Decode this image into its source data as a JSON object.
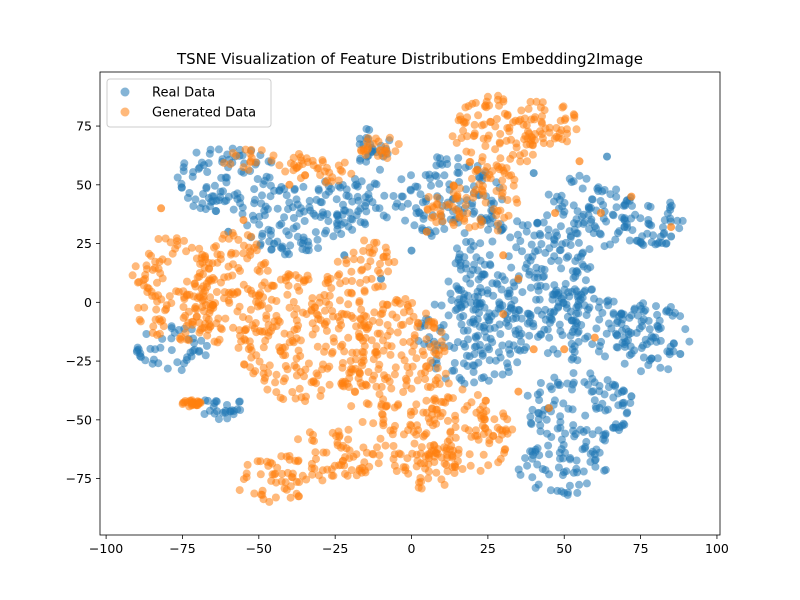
{
  "chart_data": {
    "type": "scatter",
    "title": "TSNE Visualization of Feature Distributions Embedding2Image",
    "xlabel": "",
    "ylabel": "",
    "xlim": [
      -102,
      101
    ],
    "ylim": [
      -99,
      98
    ],
    "xticks": [
      -100,
      -75,
      -50,
      -25,
      0,
      25,
      50,
      75,
      100
    ],
    "xtick_labels": [
      "−100",
      "−75",
      "−50",
      "−25",
      "0",
      "25",
      "50",
      "75",
      "100"
    ],
    "yticks": [
      -75,
      -50,
      -25,
      0,
      25,
      50,
      75
    ],
    "ytick_labels": [
      "−75",
      "−50",
      "−25",
      "0",
      "25",
      "50",
      "75"
    ],
    "grid": false,
    "legend_position": "upper-left",
    "series": [
      {
        "name": "Real Data",
        "color": "#1f77b4",
        "alpha": 0.55,
        "clusters": [
          {
            "cx": -60,
            "cy": 52,
            "rx": 17,
            "ry": 15
          },
          {
            "cx": -38,
            "cy": 35,
            "rx": 17,
            "ry": 15
          },
          {
            "cx": -20,
            "cy": 42,
            "rx": 14,
            "ry": 12
          },
          {
            "cx": -12,
            "cy": 65,
            "rx": 6,
            "ry": 10
          },
          {
            "cx": 12,
            "cy": 45,
            "rx": 18,
            "ry": 18
          },
          {
            "cx": 35,
            "cy": 10,
            "rx": 25,
            "ry": 25
          },
          {
            "cx": 57,
            "cy": 38,
            "rx": 15,
            "ry": 16
          },
          {
            "cx": 78,
            "cy": 35,
            "rx": 12,
            "ry": 12
          },
          {
            "cx": 78,
            "cy": -15,
            "rx": 14,
            "ry": 15
          },
          {
            "cx": 55,
            "cy": -10,
            "rx": 18,
            "ry": 15
          },
          {
            "cx": 55,
            "cy": -45,
            "rx": 18,
            "ry": 16
          },
          {
            "cx": 50,
            "cy": -70,
            "rx": 15,
            "ry": 12
          },
          {
            "cx": 20,
            "cy": -15,
            "rx": 18,
            "ry": 20
          },
          {
            "cx": -78,
            "cy": -20,
            "rx": 12,
            "ry": 10
          },
          {
            "cx": -62,
            "cy": -45,
            "rx": 8,
            "ry": 6
          }
        ],
        "sparse": [
          {
            "x": -60,
            "y": 30
          },
          {
            "x": -45,
            "y": 25
          },
          {
            "x": -22,
            "y": 20
          },
          {
            "x": -10,
            "y": 10
          },
          {
            "x": 0,
            "y": 22
          },
          {
            "x": 72,
            "y": -40
          },
          {
            "x": 88,
            "y": -22
          },
          {
            "x": 85,
            "y": 28
          },
          {
            "x": 64,
            "y": 62
          },
          {
            "x": 40,
            "y": 55
          }
        ]
      },
      {
        "name": "Generated Data",
        "color": "#ff7f0e",
        "alpha": 0.55,
        "clusters": [
          {
            "cx": -78,
            "cy": 5,
            "rx": 14,
            "ry": 24
          },
          {
            "cx": -58,
            "cy": 5,
            "rx": 14,
            "ry": 25
          },
          {
            "cx": -35,
            "cy": -15,
            "rx": 22,
            "ry": 28
          },
          {
            "cx": -5,
            "cy": -30,
            "rx": 18,
            "ry": 32
          },
          {
            "cx": 18,
            "cy": -55,
            "rx": 16,
            "ry": 18
          },
          {
            "cx": -45,
            "cy": -75,
            "rx": 14,
            "ry": 10
          },
          {
            "cx": -25,
            "cy": -65,
            "rx": 15,
            "ry": 12
          },
          {
            "cx": 5,
            "cy": -70,
            "rx": 13,
            "ry": 10
          },
          {
            "cx": -15,
            "cy": 15,
            "rx": 10,
            "ry": 12
          },
          {
            "cx": 28,
            "cy": 72,
            "rx": 15,
            "ry": 16
          },
          {
            "cx": 42,
            "cy": 76,
            "rx": 13,
            "ry": 11
          },
          {
            "cx": 24,
            "cy": 45,
            "rx": 11,
            "ry": 16
          },
          {
            "cx": -10,
            "cy": 66,
            "rx": 7,
            "ry": 5
          },
          {
            "cx": -48,
            "cy": 60,
            "rx": 14,
            "ry": 6
          },
          {
            "cx": -28,
            "cy": 56,
            "rx": 10,
            "ry": 6
          },
          {
            "cx": 12,
            "cy": 40,
            "rx": 8,
            "ry": 8
          },
          {
            "cx": -72,
            "cy": -43,
            "rx": 3,
            "ry": 1.5
          }
        ],
        "sparse": [
          {
            "x": -82,
            "y": 40
          },
          {
            "x": -55,
            "y": 35
          },
          {
            "x": -40,
            "y": 50
          },
          {
            "x": 5,
            "y": 30
          },
          {
            "x": 30,
            "y": -5
          },
          {
            "x": 40,
            "y": -20
          },
          {
            "x": 50,
            "y": -20
          },
          {
            "x": 62,
            "y": 38
          },
          {
            "x": 72,
            "y": 45
          },
          {
            "x": 85,
            "y": 32
          },
          {
            "x": 35,
            "y": 10
          },
          {
            "x": 47,
            "y": 38
          },
          {
            "x": 55,
            "y": 60
          },
          {
            "x": 35,
            "y": -38
          },
          {
            "x": 45,
            "y": -45
          },
          {
            "x": 30,
            "y": 20
          },
          {
            "x": 60,
            "y": -15
          },
          {
            "x": -15,
            "y": -35
          }
        ]
      }
    ]
  }
}
